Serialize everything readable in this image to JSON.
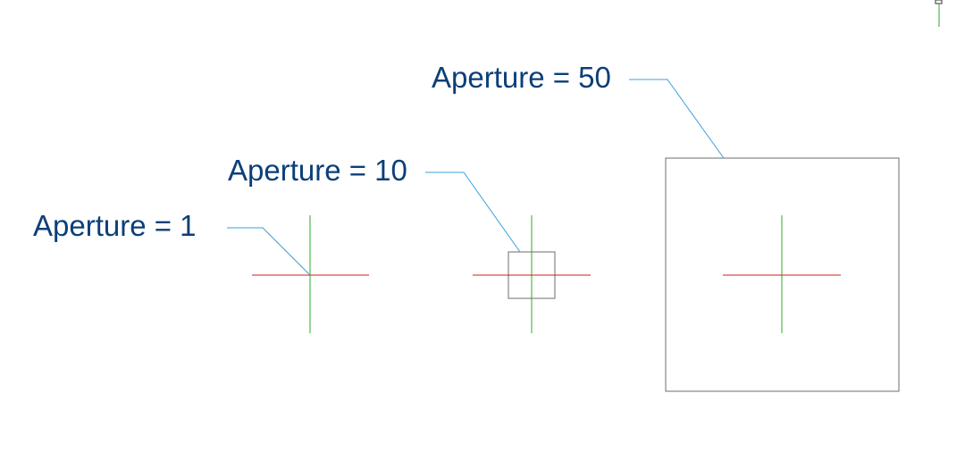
{
  "labels": {
    "aperture_1": "Aperture = 1",
    "aperture_10": "Aperture = 10",
    "aperture_50": "Aperture = 50"
  },
  "colors": {
    "label_text": "#0c3f78",
    "leader_line": "#3aa0d8",
    "crosshair_horizontal": "#cc1d1d",
    "crosshair_vertical": "#2eaa2e",
    "aperture_box": "#6e6e6e"
  }
}
